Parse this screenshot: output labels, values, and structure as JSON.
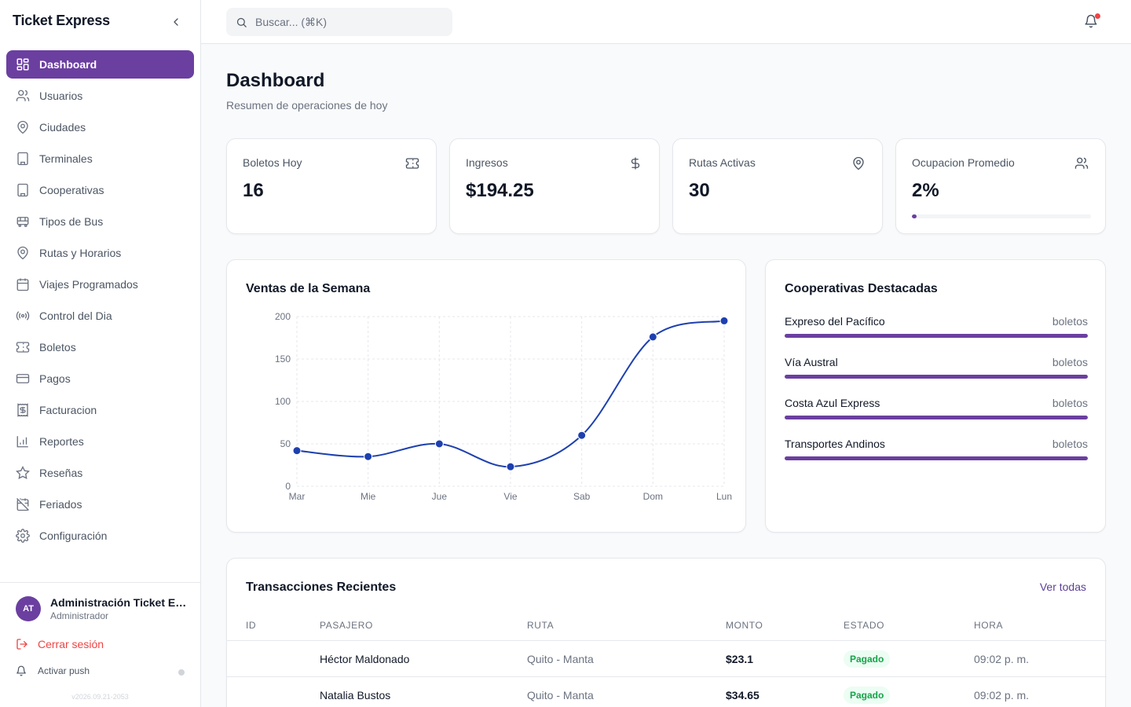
{
  "app": {
    "title": "Ticket Express"
  },
  "sidebar": {
    "items": [
      {
        "label": "Dashboard",
        "icon": "dashboard-icon",
        "active": true
      },
      {
        "label": "Usuarios",
        "icon": "users-icon"
      },
      {
        "label": "Ciudades",
        "icon": "map-pin-icon"
      },
      {
        "label": "Terminales",
        "icon": "building-icon"
      },
      {
        "label": "Cooperativas",
        "icon": "building-icon"
      },
      {
        "label": "Tipos de Bus",
        "icon": "bus-icon"
      },
      {
        "label": "Rutas y Horarios",
        "icon": "map-pin-icon"
      },
      {
        "label": "Viajes Programados",
        "icon": "calendar-icon"
      },
      {
        "label": "Control del Dia",
        "icon": "broadcast-icon"
      },
      {
        "label": "Boletos",
        "icon": "ticket-icon"
      },
      {
        "label": "Pagos",
        "icon": "credit-card-icon"
      },
      {
        "label": "Facturacion",
        "icon": "receipt-icon"
      },
      {
        "label": "Reportes",
        "icon": "bar-chart-icon"
      },
      {
        "label": "Reseñas",
        "icon": "star-icon"
      },
      {
        "label": "Feriados",
        "icon": "calendar-off-icon"
      },
      {
        "label": "Configuración",
        "icon": "gear-icon"
      }
    ],
    "user": {
      "initials": "AT",
      "name": "Administración Ticket Express",
      "role": "Administrador"
    },
    "logout_label": "Cerrar sesión",
    "push_label": "Activar push",
    "version": "v2026.09.21-2053"
  },
  "topbar": {
    "search_placeholder": "Buscar... (⌘K)"
  },
  "page": {
    "title": "Dashboard",
    "subtitle": "Resumen de operaciones de hoy"
  },
  "stats": [
    {
      "label": "Boletos Hoy",
      "value": "16",
      "icon": "ticket-icon"
    },
    {
      "label": "Ingresos",
      "value": "$194.25",
      "icon": "dollar-icon"
    },
    {
      "label": "Rutas Activas",
      "value": "30",
      "icon": "map-pin-icon"
    },
    {
      "label": "Ocupacion Promedio",
      "value": "2%",
      "icon": "users-icon",
      "progress": 0.02
    }
  ],
  "sales": {
    "title": "Ventas de la Semana",
    "chart_data": {
      "type": "line",
      "categories": [
        "Mar",
        "Mie",
        "Jue",
        "Vie",
        "Sab",
        "Dom",
        "Lun"
      ],
      "values": [
        42,
        35,
        50,
        23,
        60,
        176,
        195
      ],
      "ylim": [
        0,
        200
      ],
      "yticks": [
        0,
        50,
        100,
        150,
        200
      ],
      "grid": true,
      "color": "#1e40af"
    }
  },
  "coops": {
    "title": "Cooperativas Destacadas",
    "items": [
      {
        "name": "Expreso del Pacífico",
        "unit": "boletos"
      },
      {
        "name": "Vía Austral",
        "unit": "boletos"
      },
      {
        "name": "Costa Azul Express",
        "unit": "boletos"
      },
      {
        "name": "Transportes Andinos",
        "unit": "boletos"
      }
    ]
  },
  "transactions": {
    "title": "Transacciones Recientes",
    "link": "Ver todas",
    "headers": [
      "ID",
      "PASAJERO",
      "RUTA",
      "MONTO",
      "ESTADO",
      "HORA"
    ],
    "rows": [
      {
        "id": "",
        "passenger": "Héctor Maldonado",
        "route": "Quito - Manta",
        "amount": "$23.1",
        "status": "Pagado",
        "time": "09:02 p. m."
      },
      {
        "id": "",
        "passenger": "Natalia Bustos",
        "route": "Quito - Manta",
        "amount": "$34.65",
        "status": "Pagado",
        "time": "09:02 p. m."
      }
    ]
  },
  "colors": {
    "accent": "#6b3fa0",
    "chart_line": "#1e40af",
    "success": "#16a34a",
    "danger": "#ef4444"
  }
}
